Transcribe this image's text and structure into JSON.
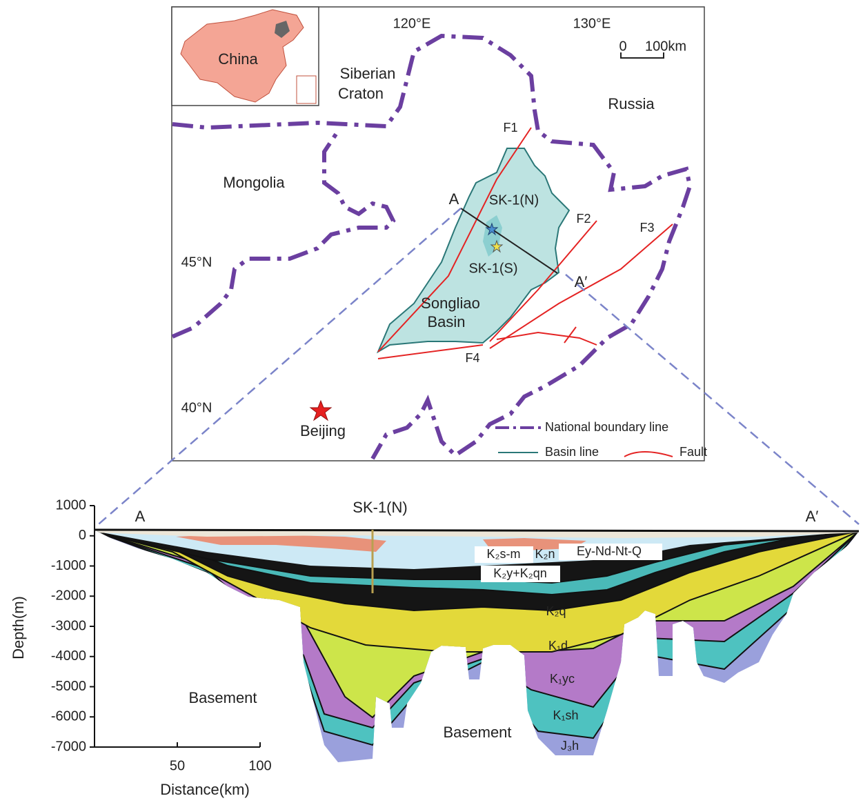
{
  "map": {
    "inset_label": "China",
    "lon_labels": [
      "120°E",
      "130°E"
    ],
    "lat_labels": [
      "45°N",
      "40°N"
    ],
    "scale_labels": [
      "0",
      "100km"
    ],
    "regions": {
      "siberian_craton": [
        "Siberian",
        "Craton"
      ],
      "russia": "Russia",
      "mongolia": "Mongolia"
    },
    "faults": [
      "F1",
      "F2",
      "F3",
      "F4"
    ],
    "profile_ends": [
      "A",
      "A′"
    ],
    "wells": [
      "SK-1(N)",
      "SK-1(S)"
    ],
    "basin": [
      "Songliao",
      "Basin"
    ],
    "capital": "Beijing",
    "legend": [
      "National boundary line",
      "Basin line",
      "Fault"
    ]
  },
  "section": {
    "well": "SK-1(N)",
    "ends": [
      "A",
      "A′"
    ],
    "basement": [
      "Basement",
      "Basement"
    ],
    "formations": [
      "K₂s-m",
      "K₂n",
      "Ey-Nd-Nt-Q",
      "K₂y+K₂qn",
      "K₂q",
      "K₁d",
      "K₁yc",
      "K₁sh",
      "J₃h"
    ],
    "y_label": "Depth(m)",
    "x_label": "Distance(km)",
    "ylim": [
      -7000,
      1000
    ],
    "yticks": [
      1000,
      0,
      -1000,
      -2000,
      -3000,
      -4000,
      -5000,
      -6000,
      -7000
    ],
    "xlim": [
      0,
      100
    ],
    "xticks": [
      50,
      100
    ]
  }
}
